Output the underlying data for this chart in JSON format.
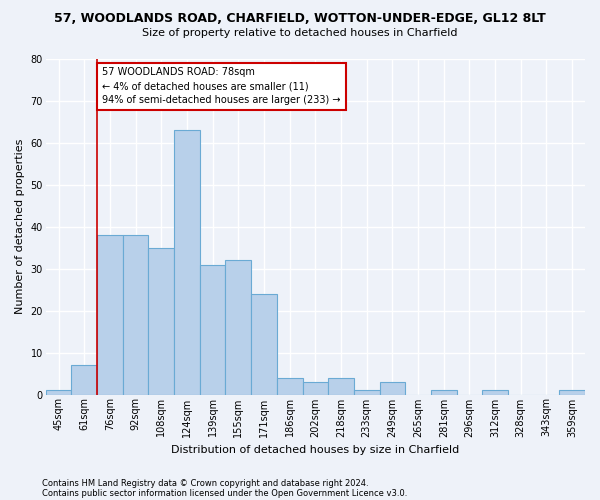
{
  "title1": "57, WOODLANDS ROAD, CHARFIELD, WOTTON-UNDER-EDGE, GL12 8LT",
  "title2": "Size of property relative to detached houses in Charfield",
  "xlabel": "Distribution of detached houses by size in Charfield",
  "ylabel": "Number of detached properties",
  "categories": [
    "45sqm",
    "61sqm",
    "76sqm",
    "92sqm",
    "108sqm",
    "124sqm",
    "139sqm",
    "155sqm",
    "171sqm",
    "186sqm",
    "202sqm",
    "218sqm",
    "233sqm",
    "249sqm",
    "265sqm",
    "281sqm",
    "296sqm",
    "312sqm",
    "328sqm",
    "343sqm",
    "359sqm"
  ],
  "values": [
    1,
    7,
    38,
    38,
    35,
    63,
    31,
    32,
    24,
    4,
    3,
    4,
    1,
    3,
    0,
    1,
    0,
    1,
    0,
    0,
    1
  ],
  "bar_color": "#b8d0ea",
  "bar_edge_color": "#6aaad4",
  "vline_color": "#cc0000",
  "vline_x_index": 2,
  "annotation_text": "57 WOODLANDS ROAD: 78sqm\n← 4% of detached houses are smaller (11)\n94% of semi-detached houses are larger (233) →",
  "annotation_box_color": "#ffffff",
  "annotation_box_edge": "#cc0000",
  "ylim": [
    0,
    80
  ],
  "yticks": [
    0,
    10,
    20,
    30,
    40,
    50,
    60,
    70,
    80
  ],
  "footnote1": "Contains HM Land Registry data © Crown copyright and database right 2024.",
  "footnote2": "Contains public sector information licensed under the Open Government Licence v3.0.",
  "bg_color": "#eef2f9",
  "grid_color": "#ffffff",
  "title1_fontsize": 9,
  "title2_fontsize": 8,
  "ylabel_fontsize": 8,
  "xlabel_fontsize": 8,
  "tick_fontsize": 7,
  "annot_fontsize": 7,
  "footnote_fontsize": 6
}
